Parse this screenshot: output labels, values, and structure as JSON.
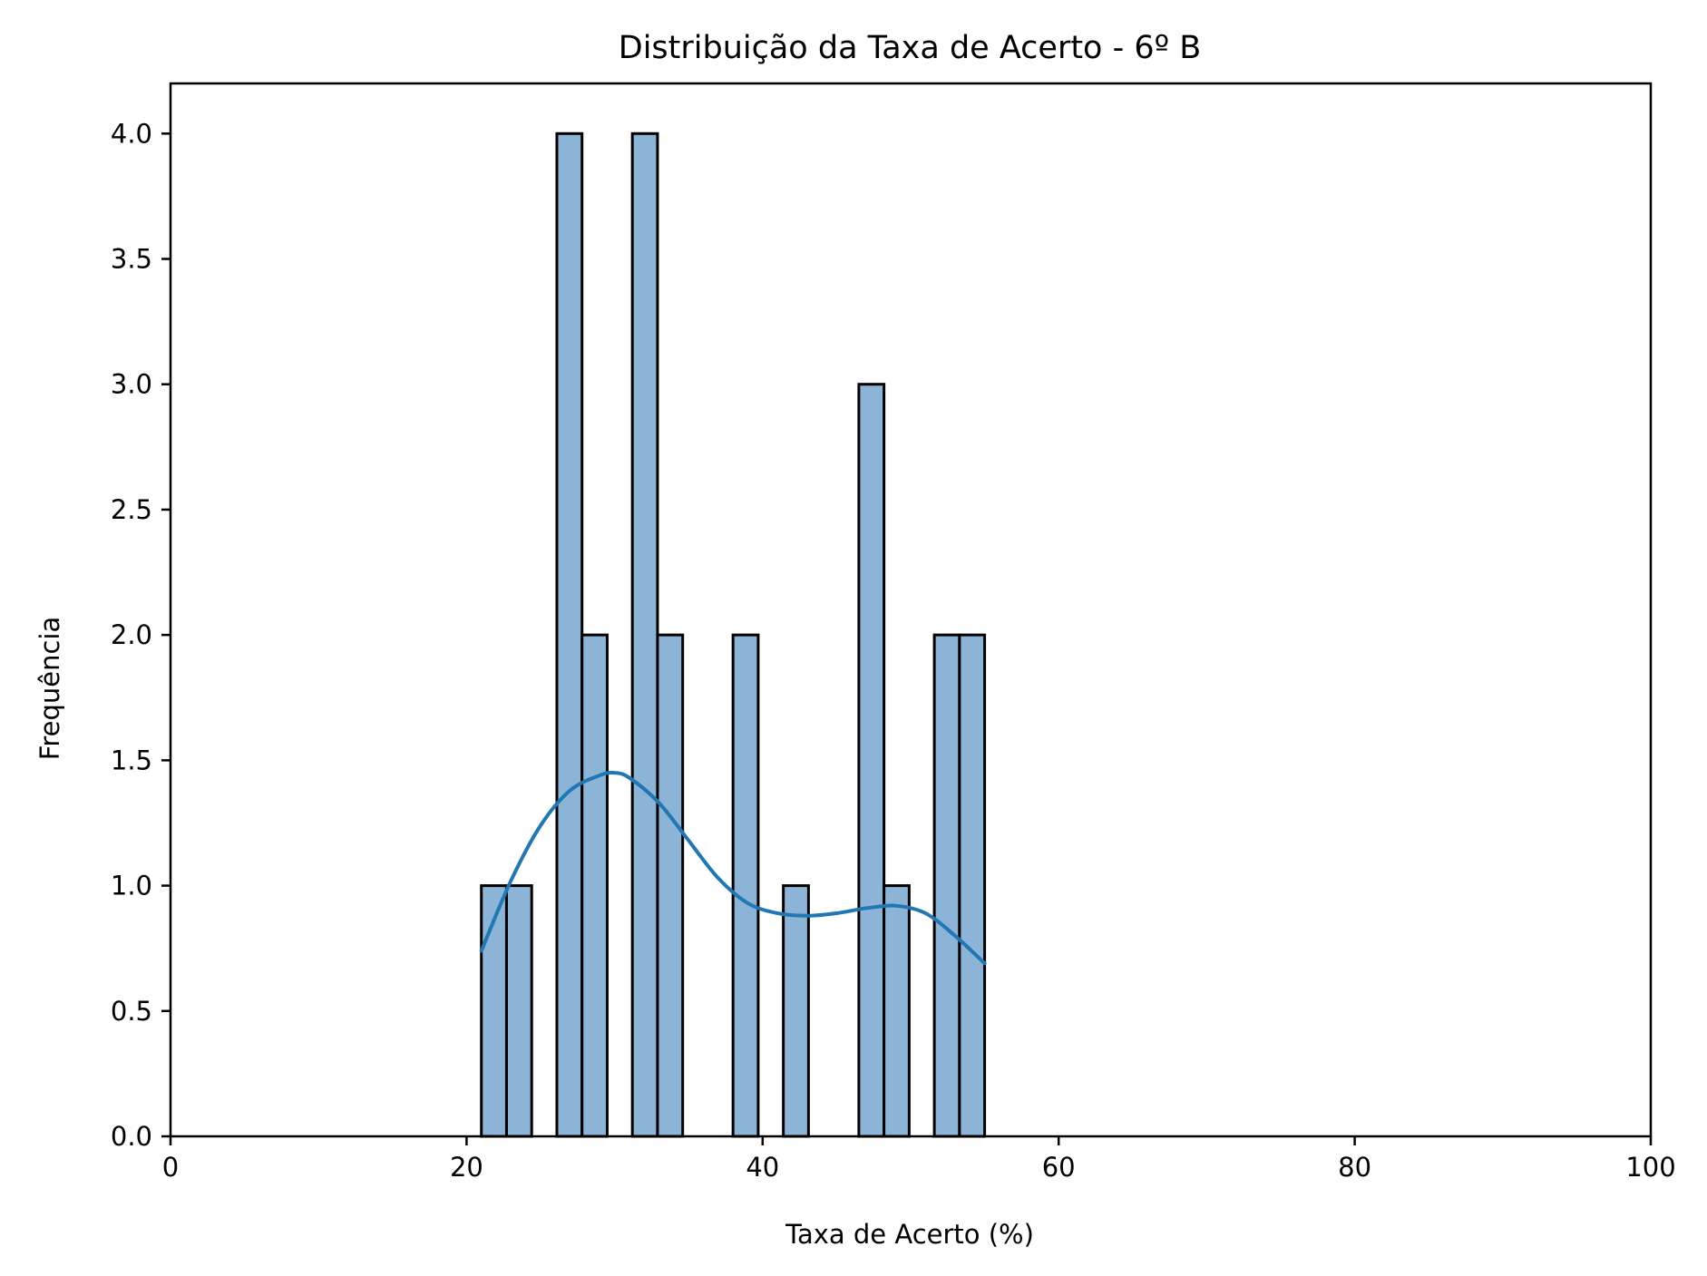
{
  "chart_data": {
    "type": "bar",
    "subtype": "histogram",
    "title": "Distribuição da Taxa de Acerto - 6º B",
    "xlabel": "Taxa de Acerto (%)",
    "ylabel": "Frequência",
    "xlim": [
      0,
      100
    ],
    "ylim": [
      0,
      4.2
    ],
    "xticks": [
      0,
      20,
      40,
      60,
      80,
      100
    ],
    "xtick_labels": [
      "0",
      "20",
      "40",
      "60",
      "80",
      "100"
    ],
    "yticks": [
      0,
      0.5,
      1,
      1.5,
      2,
      2.5,
      3,
      3.5,
      4
    ],
    "ytick_labels": [
      "0.0",
      "0.5",
      "1.0",
      "1.5",
      "2.0",
      "2.5",
      "3.0",
      "3.5",
      "4.0"
    ],
    "grid": false,
    "bar_color": "#8cb4d6",
    "bar_edge_color": "#000000",
    "kde_color": "#1f77b4",
    "bins": [
      {
        "start": 21.0,
        "end": 22.7,
        "count": 1
      },
      {
        "start": 22.7,
        "end": 24.4,
        "count": 1
      },
      {
        "start": 24.4,
        "end": 26.1,
        "count": 0
      },
      {
        "start": 26.1,
        "end": 27.8,
        "count": 4
      },
      {
        "start": 27.8,
        "end": 29.5,
        "count": 2
      },
      {
        "start": 29.5,
        "end": 31.2,
        "count": 0
      },
      {
        "start": 31.2,
        "end": 32.9,
        "count": 4
      },
      {
        "start": 32.9,
        "end": 34.6,
        "count": 2
      },
      {
        "start": 34.6,
        "end": 36.3,
        "count": 0
      },
      {
        "start": 36.3,
        "end": 38.0,
        "count": 0
      },
      {
        "start": 38.0,
        "end": 39.7,
        "count": 2
      },
      {
        "start": 39.7,
        "end": 41.4,
        "count": 0
      },
      {
        "start": 41.4,
        "end": 43.1,
        "count": 1
      },
      {
        "start": 43.1,
        "end": 44.8,
        "count": 0
      },
      {
        "start": 44.8,
        "end": 46.5,
        "count": 0
      },
      {
        "start": 46.5,
        "end": 48.2,
        "count": 3
      },
      {
        "start": 48.2,
        "end": 49.9,
        "count": 1
      },
      {
        "start": 49.9,
        "end": 51.6,
        "count": 0
      },
      {
        "start": 51.6,
        "end": 53.3,
        "count": 2
      },
      {
        "start": 53.3,
        "end": 55.0,
        "count": 2
      }
    ],
    "kde": {
      "x": [
        21.0,
        23.0,
        25.0,
        27.0,
        29.0,
        30.0,
        31.0,
        33.0,
        35.0,
        37.0,
        39.0,
        41.0,
        43.0,
        45.0,
        47.0,
        49.0,
        51.0,
        53.0,
        55.0
      ],
      "y": [
        0.74,
        1.02,
        1.24,
        1.38,
        1.44,
        1.45,
        1.43,
        1.33,
        1.18,
        1.03,
        0.93,
        0.89,
        0.88,
        0.89,
        0.91,
        0.92,
        0.89,
        0.8,
        0.69
      ]
    }
  }
}
